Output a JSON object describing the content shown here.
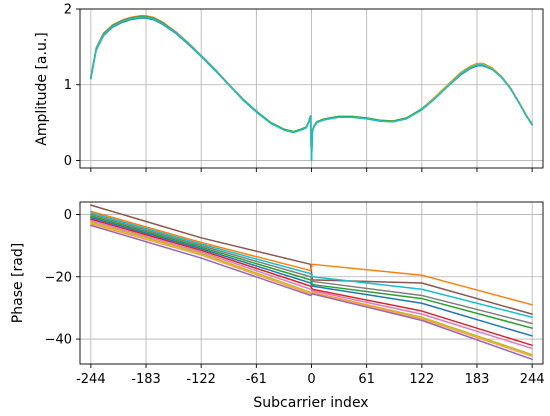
{
  "chart_data": [
    {
      "type": "line",
      "xlabel": "",
      "ylabel": "Amplitude [a.u.]",
      "xlim": [
        -256,
        256
      ],
      "ylim": [
        -0.1,
        2.0
      ],
      "xticks": [
        -244,
        -183,
        -122,
        -61,
        0,
        61,
        122,
        183,
        244
      ],
      "xtick_labels_visible": false,
      "yticks": [
        0,
        1,
        2
      ],
      "ytick_labels": [
        "0",
        "1",
        "2"
      ],
      "grid": true,
      "x": [
        -244,
        -238,
        -230,
        -220,
        -210,
        -200,
        -190,
        -183,
        -175,
        -165,
        -150,
        -135,
        -120,
        -105,
        -90,
        -75,
        -60,
        -45,
        -30,
        -20,
        -12,
        -6,
        -3,
        -2,
        -1,
        0,
        1,
        2,
        3,
        6,
        12,
        20,
        30,
        45,
        61,
        75,
        90,
        105,
        122,
        135,
        150,
        165,
        175,
        183,
        190,
        200,
        210,
        220,
        230,
        238,
        244
      ],
      "series": [
        {
          "color": "#1f77b4",
          "values": [
            1.08,
            1.46,
            1.65,
            1.76,
            1.82,
            1.86,
            1.88,
            1.88,
            1.86,
            1.8,
            1.68,
            1.52,
            1.35,
            1.17,
            0.98,
            0.79,
            0.63,
            0.49,
            0.4,
            0.37,
            0.4,
            0.43,
            0.5,
            0.55,
            0.58,
            0.0,
            0.38,
            0.42,
            0.45,
            0.5,
            0.53,
            0.55,
            0.57,
            0.57,
            0.55,
            0.52,
            0.51,
            0.55,
            0.67,
            0.8,
            0.97,
            1.13,
            1.21,
            1.25,
            1.25,
            1.2,
            1.1,
            0.95,
            0.75,
            0.58,
            0.47
          ]
        },
        {
          "color": "#ff7f0e",
          "values": [
            1.11,
            1.49,
            1.68,
            1.79,
            1.85,
            1.89,
            1.91,
            1.91,
            1.89,
            1.83,
            1.7,
            1.54,
            1.36,
            1.18,
            0.99,
            0.8,
            0.64,
            0.5,
            0.41,
            0.38,
            0.41,
            0.44,
            0.51,
            0.56,
            0.59,
            0.0,
            0.39,
            0.43,
            0.46,
            0.51,
            0.54,
            0.56,
            0.58,
            0.58,
            0.56,
            0.53,
            0.52,
            0.56,
            0.68,
            0.82,
            0.99,
            1.16,
            1.24,
            1.28,
            1.28,
            1.22,
            1.11,
            0.96,
            0.76,
            0.59,
            0.48
          ]
        },
        {
          "color": "#2ca02c",
          "values": [
            1.1,
            1.48,
            1.67,
            1.78,
            1.84,
            1.88,
            1.9,
            1.9,
            1.88,
            1.82,
            1.69,
            1.53,
            1.36,
            1.18,
            0.98,
            0.8,
            0.64,
            0.5,
            0.41,
            0.38,
            0.41,
            0.44,
            0.51,
            0.56,
            0.59,
            0.0,
            0.39,
            0.43,
            0.46,
            0.51,
            0.54,
            0.56,
            0.58,
            0.58,
            0.56,
            0.53,
            0.52,
            0.56,
            0.68,
            0.81,
            0.98,
            1.15,
            1.23,
            1.27,
            1.27,
            1.21,
            1.1,
            0.95,
            0.75,
            0.58,
            0.48
          ]
        },
        {
          "color": "#bcbd22",
          "values": [
            1.09,
            1.47,
            1.66,
            1.77,
            1.83,
            1.87,
            1.89,
            1.89,
            1.87,
            1.81,
            1.69,
            1.53,
            1.35,
            1.17,
            0.98,
            0.79,
            0.63,
            0.49,
            0.4,
            0.37,
            0.4,
            0.43,
            0.5,
            0.55,
            0.58,
            0.0,
            0.38,
            0.42,
            0.45,
            0.5,
            0.53,
            0.55,
            0.57,
            0.57,
            0.55,
            0.52,
            0.51,
            0.55,
            0.67,
            0.81,
            0.98,
            1.15,
            1.23,
            1.27,
            1.27,
            1.21,
            1.1,
            0.95,
            0.75,
            0.58,
            0.47
          ]
        },
        {
          "color": "#17becf",
          "values": [
            1.09,
            1.47,
            1.66,
            1.77,
            1.83,
            1.87,
            1.89,
            1.89,
            1.87,
            1.81,
            1.69,
            1.53,
            1.35,
            1.17,
            0.98,
            0.79,
            0.63,
            0.49,
            0.4,
            0.37,
            0.4,
            0.43,
            0.5,
            0.55,
            0.59,
            0.0,
            0.38,
            0.42,
            0.45,
            0.5,
            0.53,
            0.55,
            0.57,
            0.57,
            0.55,
            0.52,
            0.51,
            0.55,
            0.67,
            0.8,
            0.97,
            1.14,
            1.22,
            1.26,
            1.26,
            1.2,
            1.1,
            0.95,
            0.75,
            0.58,
            0.47
          ]
        }
      ]
    },
    {
      "type": "line",
      "xlabel": "Subcarrier index",
      "ylabel": "Phase [rad]",
      "xlim": [
        -256,
        256
      ],
      "ylim": [
        -48,
        4
      ],
      "xticks": [
        -244,
        -183,
        -122,
        -61,
        0,
        61,
        122,
        183,
        244
      ],
      "xtick_labels": [
        "-244",
        "-183",
        "-122",
        "-61",
        "0",
        "61",
        "122",
        "183",
        "244"
      ],
      "yticks": [
        0,
        -20,
        -40
      ],
      "ytick_labels": [
        "0",
        "−20",
        "−40"
      ],
      "grid": true,
      "series": [
        {
          "color": "#8c564b",
          "values": [
            3.0,
            -7.5,
            -16.0,
            -21.0,
            -22.0,
            -32.0
          ]
        },
        {
          "color": "#ff7f0e",
          "values": [
            1.0,
            -9.0,
            -18.0,
            -16.0,
            -19.5,
            -29.0
          ]
        },
        {
          "color": "#17becf",
          "values": [
            0.5,
            -9.5,
            -19.0,
            -20.0,
            -24.0,
            -33.0
          ]
        },
        {
          "color": "#7f7f7f",
          "values": [
            0.0,
            -10.0,
            -20.0,
            -21.5,
            -26.0,
            -35.0
          ]
        },
        {
          "color": "#2ca02c",
          "values": [
            -0.5,
            -10.5,
            -21.0,
            -22.5,
            -27.0,
            -36.5
          ]
        },
        {
          "color": "#1f77b4",
          "values": [
            -1.0,
            -11.0,
            -22.0,
            -23.0,
            -28.5,
            -39.0
          ]
        },
        {
          "color": "#d62728",
          "values": [
            -1.5,
            -11.5,
            -23.0,
            -24.0,
            -31.0,
            -42.0
          ]
        },
        {
          "color": "#e377c2",
          "values": [
            -2.0,
            -12.0,
            -24.0,
            -24.5,
            -32.0,
            -43.0
          ]
        },
        {
          "color": "#bcbd22",
          "values": [
            -2.5,
            -12.5,
            -25.0,
            -25.0,
            -33.0,
            -45.0
          ]
        },
        {
          "color": "#ff9f40",
          "values": [
            -3.0,
            -13.0,
            -25.5,
            -25.0,
            -33.5,
            -45.5
          ]
        },
        {
          "color": "#9467bd",
          "values": [
            -3.5,
            -14.0,
            -26.0,
            -25.5,
            -34.0,
            -46.5
          ]
        }
      ],
      "x": [
        -244,
        -122,
        -1,
        1,
        122,
        244
      ]
    }
  ]
}
